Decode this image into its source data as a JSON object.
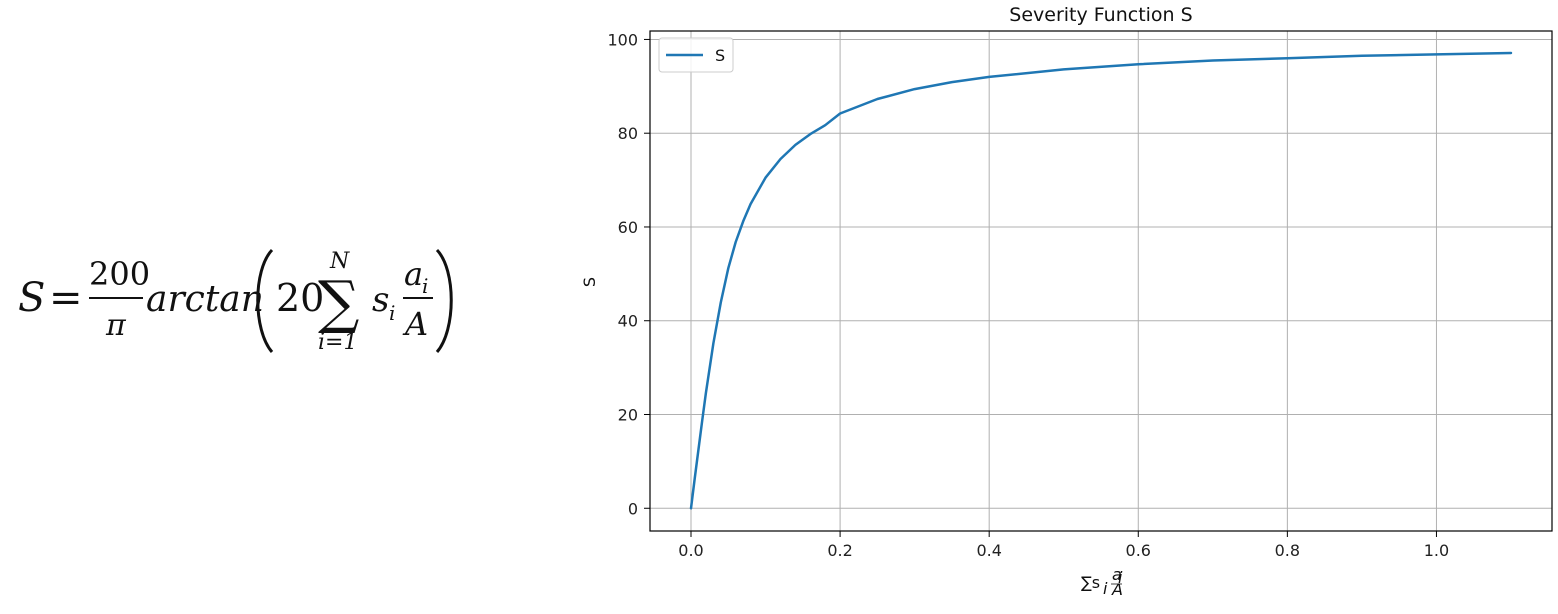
{
  "formula": {
    "lhs": "S",
    "equals": "=",
    "numerator": "200",
    "denominator": "π",
    "function": "arctan",
    "coefficient": "20",
    "sum_symbol": "∑",
    "sum_upper": "N",
    "sum_lower": "i=1",
    "term_s": "s",
    "term_s_sub": "i",
    "frac_num": "a",
    "frac_num_sub": "i",
    "frac_den": "A"
  },
  "chart_data": {
    "type": "line",
    "title": "Severity Function S",
    "xlabel": "∑s",
    "xlabel_sub": "i",
    "xlabel_frac_num": "a",
    "xlabel_frac_num_sub": "i",
    "xlabel_frac_den": "A",
    "ylabel": "S",
    "xlim": [
      -0.055,
      1.155
    ],
    "ylim": [
      -4.85,
      101.8
    ],
    "xticks": [
      0.0,
      0.2,
      0.4,
      0.6,
      0.8,
      1.0
    ],
    "xtick_labels": [
      "0.0",
      "0.2",
      "0.4",
      "0.6",
      "0.8",
      "1.0"
    ],
    "yticks": [
      0,
      20,
      40,
      60,
      80,
      100
    ],
    "ytick_labels": [
      "0",
      "20",
      "40",
      "60",
      "80",
      "100"
    ],
    "grid": true,
    "legend_position": "upper-left",
    "series": [
      {
        "name": "S",
        "color": "#1f77b4",
        "x": [
          0.0,
          0.005,
          0.01,
          0.015,
          0.02,
          0.03,
          0.04,
          0.05,
          0.06,
          0.07,
          0.08,
          0.1,
          0.12,
          0.14,
          0.16,
          0.18,
          0.2,
          0.25,
          0.3,
          0.35,
          0.4,
          0.5,
          0.6,
          0.7,
          0.8,
          0.9,
          1.0,
          1.1
        ],
        "y": [
          0.0,
          6.3,
          12.6,
          18.7,
          24.6,
          35.2,
          43.9,
          51.2,
          56.8,
          61.2,
          64.9,
          70.5,
          74.5,
          77.5,
          79.8,
          81.7,
          84.2,
          87.3,
          89.4,
          90.9,
          92.0,
          93.6,
          94.7,
          95.5,
          96.0,
          96.5,
          96.8,
          97.1
        ]
      }
    ]
  }
}
